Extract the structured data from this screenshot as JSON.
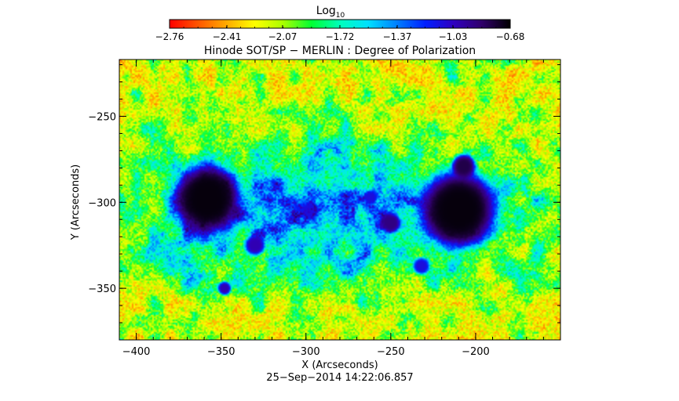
{
  "chart_data": {
    "type": "heatmap",
    "title": "Hinode SOT/SP − MERLIN : Degree of Polarization",
    "xlabel": "X (Arcseconds)",
    "ylabel": "Y (Arcseconds)",
    "timestamp": "25−Sep−2014 14:22:06.857",
    "xlim": [
      -410,
      -150
    ],
    "ylim": [
      -380,
      -217
    ],
    "x_ticks": [
      -400,
      -350,
      -300,
      -250,
      -200
    ],
    "x_tick_labels": [
      "−400",
      "−350",
      "−300",
      "−250",
      "−200"
    ],
    "y_ticks": [
      -250,
      -300,
      -350
    ],
    "y_tick_labels": [
      "−250",
      "−300",
      "−350"
    ],
    "colorbar": {
      "label_base": "Log",
      "label_sub": "10",
      "range": [
        -2.76,
        -0.68
      ],
      "ticks": [
        -2.76,
        -2.41,
        -2.07,
        -1.72,
        -1.37,
        -1.03,
        -0.68
      ],
      "tick_labels": [
        "−2.76",
        "−2.41",
        "−2.07",
        "−1.72",
        "−1.37",
        "−1.03",
        "−0.68"
      ],
      "colors": [
        "#ff0000",
        "#ff5500",
        "#ffaa00",
        "#ffff00",
        "#aaff00",
        "#00ff33",
        "#00ffbb",
        "#00e0ff",
        "#0080ff",
        "#0020ff",
        "#3000c0",
        "#30006a",
        "#000000"
      ]
    },
    "features": [
      {
        "name": "sunspot",
        "x": -358,
        "y": -298,
        "radius": 20,
        "value": -0.7
      },
      {
        "name": "sunspot",
        "x": -210,
        "y": -304,
        "radius": 23,
        "value": -0.7
      },
      {
        "name": "pore",
        "x": -207,
        "y": -279,
        "radius": 7,
        "value": -0.8
      },
      {
        "name": "pore",
        "x": -250,
        "y": -312,
        "radius": 6,
        "value": -0.9
      },
      {
        "name": "pore",
        "x": -330,
        "y": -325,
        "radius": 6,
        "value": -1.0
      },
      {
        "name": "pore",
        "x": -348,
        "y": -350,
        "radius": 4,
        "value": -1.0
      },
      {
        "name": "pore",
        "x": -298,
        "y": -305,
        "radius": 5,
        "value": -1.1
      },
      {
        "name": "pore",
        "x": -262,
        "y": -297,
        "radius": 4,
        "value": -1.1
      },
      {
        "name": "pore",
        "x": -232,
        "y": -337,
        "radius": 5,
        "value": -1.1
      }
    ]
  }
}
